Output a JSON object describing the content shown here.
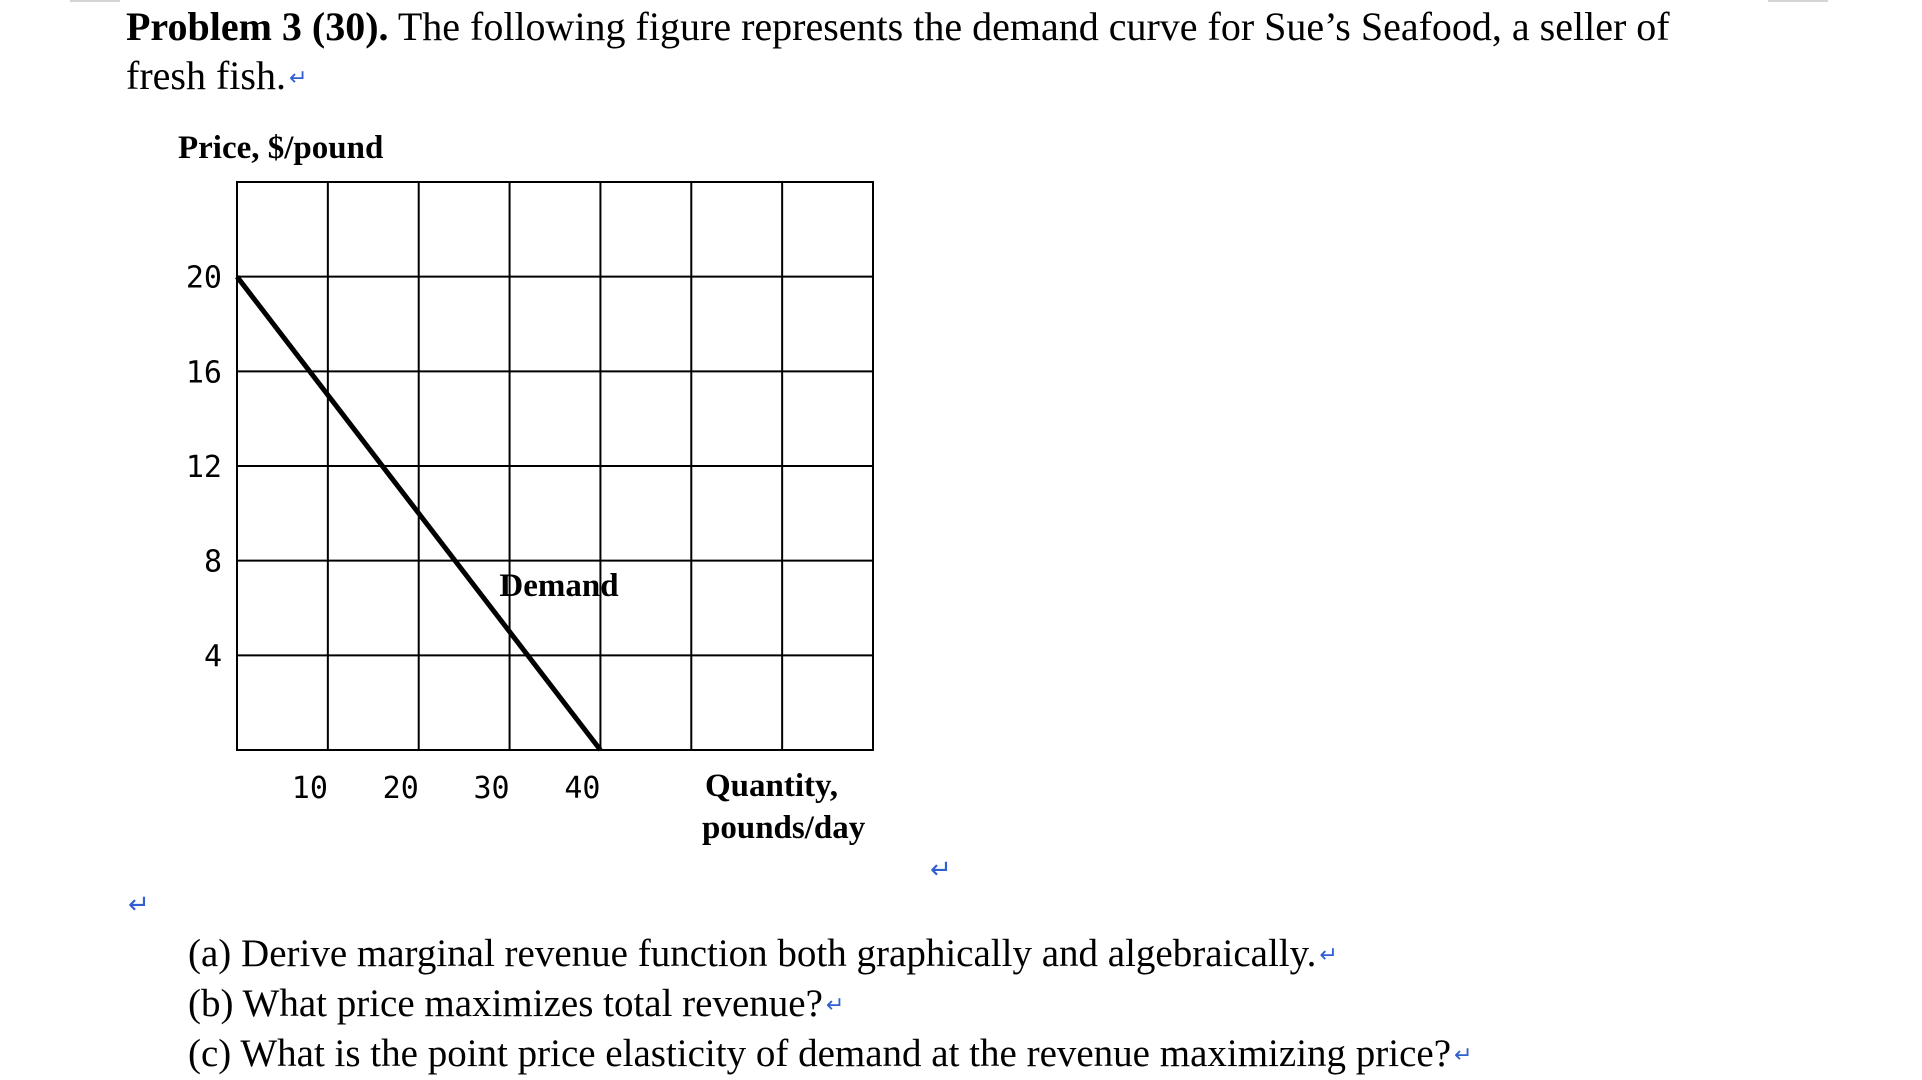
{
  "problem": {
    "heading": "Problem 3 (30).",
    "text_line1": " The following figure represents the demand curve for Sue’s Seafood, a seller of",
    "text_line2": "fresh fish."
  },
  "chart_data": {
    "type": "line",
    "ylabel": "Price, $/pound",
    "xlabel_line1": "Quantity,",
    "xlabel_line2": "pounds/day",
    "x_ticks": [
      "10",
      "20",
      "30",
      "40"
    ],
    "y_ticks": [
      "20",
      "16",
      "12",
      "8",
      "4"
    ],
    "xlim": [
      0,
      70
    ],
    "ylim": [
      0,
      24
    ],
    "grid": true,
    "series": [
      {
        "name": "Demand",
        "x": [
          0,
          40
        ],
        "y": [
          20,
          0
        ]
      }
    ]
  },
  "questions": {
    "a": "(a) Derive marginal revenue function both graphically and algebraically.",
    "b": "(b) What price maximizes total revenue?",
    "c": "(c) What is the point price elasticity of demand at the revenue maximizing price?"
  },
  "icons": {
    "paragraph_mark": "↵"
  }
}
